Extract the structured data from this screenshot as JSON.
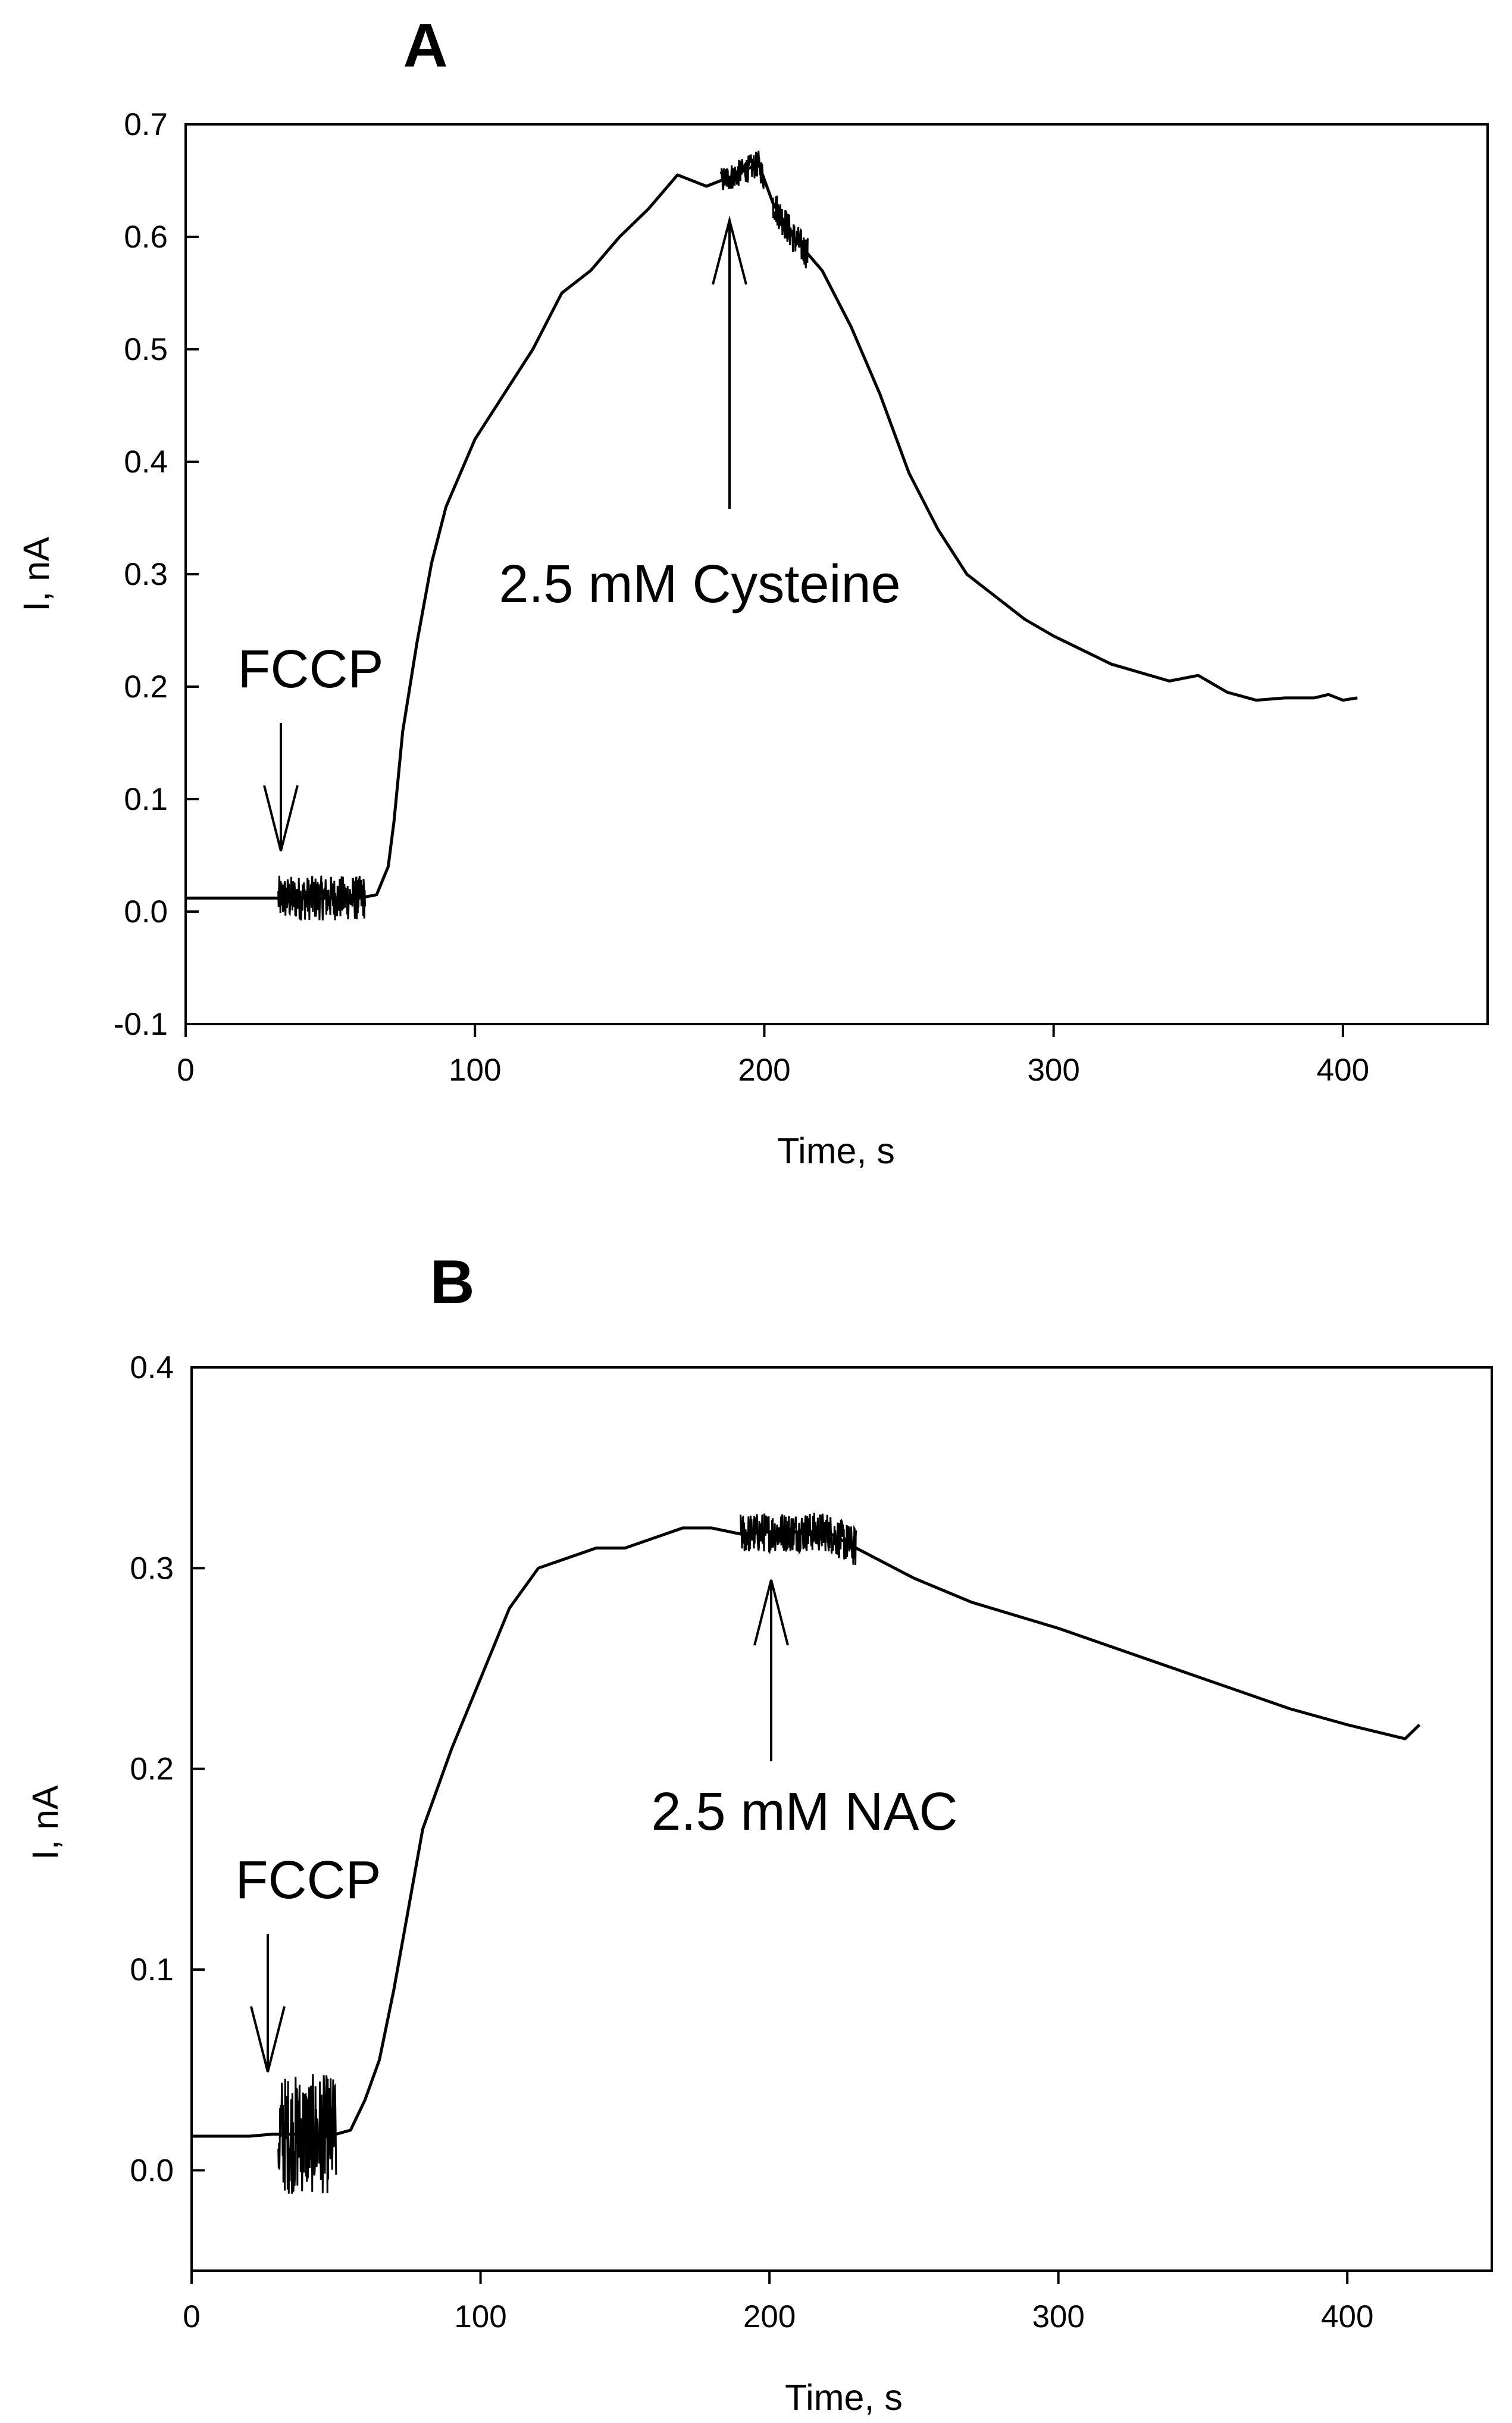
{
  "chart_data": [
    {
      "panel": "A",
      "type": "line",
      "xlabel": "Time, s",
      "ylabel": "I, nA",
      "xlim": [
        0,
        450
      ],
      "ylim": [
        -0.1,
        0.7
      ],
      "xticks": [
        0,
        100,
        200,
        300,
        400
      ],
      "yticks": [
        -0.1,
        0.0,
        0.1,
        0.2,
        0.3,
        0.4,
        0.5,
        0.6,
        0.7
      ],
      "xtick_labels": [
        "0",
        "100",
        "200",
        "300",
        "400"
      ],
      "ytick_labels": [
        "-0.1",
        "0.0",
        "0.1",
        "0.2",
        "0.3",
        "0.4",
        "0.5",
        "0.6",
        "0.7"
      ],
      "series": [
        {
          "name": "current",
          "points": [
            [
              0,
              0.012
            ],
            [
              10,
              0.012
            ],
            [
              20,
              0.012
            ],
            [
              30,
              0.012
            ],
            [
              60,
              0.012
            ],
            [
              66,
              0.015
            ],
            [
              70,
              0.04
            ],
            [
              72,
              0.08
            ],
            [
              75,
              0.16
            ],
            [
              80,
              0.24
            ],
            [
              85,
              0.31
            ],
            [
              90,
              0.36
            ],
            [
              100,
              0.42
            ],
            [
              110,
              0.46
            ],
            [
              120,
              0.5
            ],
            [
              130,
              0.55
            ],
            [
              140,
              0.57
            ],
            [
              150,
              0.6
            ],
            [
              160,
              0.625
            ],
            [
              170,
              0.655
            ],
            [
              180,
              0.645
            ],
            [
              190,
              0.655
            ],
            [
              198,
              0.665
            ],
            [
              203,
              0.63
            ],
            [
              210,
              0.6
            ],
            [
              220,
              0.57
            ],
            [
              230,
              0.52
            ],
            [
              240,
              0.46
            ],
            [
              250,
              0.39
            ],
            [
              260,
              0.34
            ],
            [
              270,
              0.3
            ],
            [
              280,
              0.28
            ],
            [
              290,
              0.26
            ],
            [
              300,
              0.245
            ],
            [
              320,
              0.22
            ],
            [
              340,
              0.205
            ],
            [
              350,
              0.21
            ],
            [
              360,
              0.195
            ],
            [
              370,
              0.188
            ],
            [
              380,
              0.19
            ],
            [
              390,
              0.19
            ],
            [
              395,
              0.193
            ],
            [
              400,
              0.188
            ],
            [
              405,
              0.19
            ]
          ],
          "noisy_segments": [
            [
              32,
              62,
              0.02
            ],
            [
              185,
              200,
              0.012
            ],
            [
              203,
              215,
              0.015
            ]
          ]
        }
      ],
      "annotations": [
        {
          "text": "FCCP",
          "arrow_x": 33,
          "direction": "down"
        },
        {
          "text": "2.5 mM Cysteine",
          "arrow_x": 188,
          "direction": "up"
        }
      ]
    },
    {
      "panel": "B",
      "type": "line",
      "xlabel": "Time, s",
      "ylabel": "I, nA",
      "xlim": [
        0,
        450
      ],
      "ylim": [
        -0.05,
        0.4
      ],
      "xticks": [
        0,
        100,
        200,
        300,
        400
      ],
      "yticks": [
        0.0,
        0.1,
        0.2,
        0.3,
        0.4
      ],
      "xtick_labels": [
        "0",
        "100",
        "200",
        "300",
        "400"
      ],
      "ytick_labels": [
        "0.0",
        "0.1",
        "0.2",
        "0.3",
        "0.4"
      ],
      "series": [
        {
          "name": "current",
          "points": [
            [
              0,
              0.017
            ],
            [
              10,
              0.017
            ],
            [
              20,
              0.017
            ],
            [
              28,
              0.018
            ],
            [
              50,
              0.018
            ],
            [
              55,
              0.02
            ],
            [
              60,
              0.035
            ],
            [
              65,
              0.055
            ],
            [
              70,
              0.09
            ],
            [
              75,
              0.13
            ],
            [
              80,
              0.17
            ],
            [
              90,
              0.21
            ],
            [
              100,
              0.245
            ],
            [
              110,
              0.28
            ],
            [
              120,
              0.3
            ],
            [
              130,
              0.305
            ],
            [
              140,
              0.31
            ],
            [
              150,
              0.31
            ],
            [
              160,
              0.315
            ],
            [
              170,
              0.32
            ],
            [
              180,
              0.32
            ],
            [
              190,
              0.317
            ],
            [
              200,
              0.318
            ],
            [
              210,
              0.318
            ],
            [
              220,
              0.318
            ],
            [
              230,
              0.31
            ],
            [
              250,
              0.295
            ],
            [
              270,
              0.283
            ],
            [
              300,
              0.27
            ],
            [
              330,
              0.255
            ],
            [
              360,
              0.24
            ],
            [
              380,
              0.23
            ],
            [
              400,
              0.222
            ],
            [
              420,
              0.215
            ],
            [
              425,
              0.222
            ]
          ],
          "noisy_segments": [
            [
              30,
              50,
              0.03
            ],
            [
              190,
              230,
              0.01
            ]
          ]
        }
      ],
      "annotations": [
        {
          "text": "FCCP",
          "arrow_x": 26,
          "direction": "down"
        },
        {
          "text": "2.5 mM NAC",
          "arrow_x": 200,
          "direction": "up"
        }
      ]
    }
  ]
}
